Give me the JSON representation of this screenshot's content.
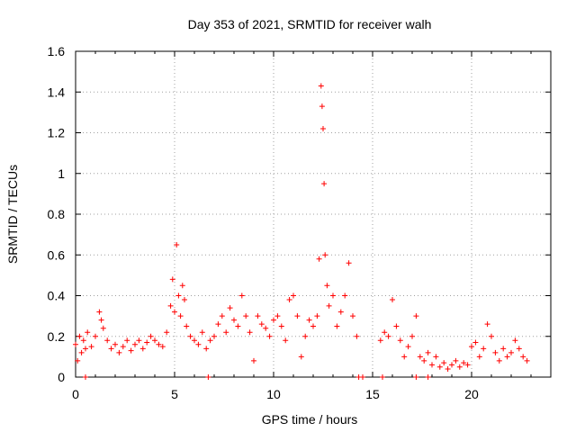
{
  "chart_data": {
    "type": "scatter",
    "title": "Day 353 of 2021, SRMTID for receiver walh",
    "xlabel": "GPS time / hours",
    "ylabel": "SRMTID / TECUs",
    "xlim": [
      0,
      24
    ],
    "ylim": [
      0,
      1.6
    ],
    "xticks": [
      0,
      5,
      10,
      15,
      20
    ],
    "xtick_labels": [
      "0",
      "5",
      "10",
      "15",
      "20"
    ],
    "yticks": [
      0,
      0.2,
      0.4,
      0.6,
      0.8,
      1,
      1.2,
      1.4,
      1.6
    ],
    "ytick_labels": [
      "0",
      "0.2",
      "0.4",
      "0.6",
      "0.8",
      "1",
      "1.2",
      "1.4",
      "1.6"
    ],
    "grid": true,
    "marker": "+",
    "color": "#ff0000",
    "series": [
      {
        "name": "SRMTID walh",
        "x": [
          0.0,
          0.1,
          0.2,
          0.3,
          0.4,
          0.5,
          0.6,
          0.8,
          1.0,
          1.2,
          1.3,
          1.4,
          1.6,
          1.8,
          2.0,
          2.2,
          2.4,
          2.6,
          2.8,
          3.0,
          3.2,
          3.4,
          3.6,
          3.8,
          4.0,
          4.2,
          4.4,
          4.6,
          4.8,
          4.9,
          5.0,
          5.1,
          5.2,
          5.3,
          5.4,
          5.5,
          5.6,
          5.8,
          6.0,
          6.2,
          6.4,
          6.6,
          6.8,
          7.0,
          7.2,
          7.4,
          7.6,
          7.8,
          8.0,
          8.2,
          8.4,
          8.6,
          8.8,
          9.0,
          9.2,
          9.4,
          9.6,
          9.8,
          10.0,
          10.2,
          10.4,
          10.6,
          10.8,
          11.0,
          11.2,
          11.4,
          11.6,
          11.8,
          12.0,
          12.2,
          12.3,
          12.4,
          12.45,
          12.5,
          12.55,
          12.6,
          12.7,
          12.8,
          13.0,
          13.2,
          13.4,
          13.6,
          13.8,
          14.0,
          14.2,
          15.4,
          15.6,
          15.8,
          16.0,
          16.2,
          16.4,
          16.6,
          16.8,
          17.0,
          17.2,
          17.4,
          17.6,
          17.8,
          18.0,
          18.2,
          18.4,
          18.6,
          18.8,
          19.0,
          19.2,
          19.4,
          19.6,
          19.8,
          20.0,
          20.2,
          20.4,
          20.6,
          20.8,
          21.0,
          21.2,
          21.4,
          21.6,
          21.8,
          22.0,
          22.2,
          22.4,
          22.6,
          22.8,
          0.5,
          6.7,
          14.3,
          14.5,
          15.5,
          17.2,
          17.8
        ],
        "y": [
          0.16,
          0.08,
          0.2,
          0.12,
          0.18,
          0.14,
          0.22,
          0.15,
          0.2,
          0.32,
          0.28,
          0.24,
          0.18,
          0.14,
          0.16,
          0.12,
          0.15,
          0.18,
          0.13,
          0.16,
          0.18,
          0.14,
          0.17,
          0.2,
          0.18,
          0.16,
          0.15,
          0.22,
          0.35,
          0.48,
          0.32,
          0.65,
          0.4,
          0.3,
          0.45,
          0.38,
          0.25,
          0.2,
          0.18,
          0.16,
          0.22,
          0.14,
          0.18,
          0.2,
          0.26,
          0.3,
          0.22,
          0.34,
          0.28,
          0.25,
          0.4,
          0.3,
          0.22,
          0.08,
          0.3,
          0.26,
          0.24,
          0.2,
          0.28,
          0.3,
          0.25,
          0.18,
          0.38,
          0.4,
          0.3,
          0.1,
          0.2,
          0.28,
          0.25,
          0.3,
          0.58,
          1.43,
          1.33,
          1.22,
          0.95,
          0.6,
          0.45,
          0.35,
          0.4,
          0.25,
          0.32,
          0.4,
          0.56,
          0.3,
          0.2,
          0.18,
          0.22,
          0.2,
          0.38,
          0.25,
          0.18,
          0.1,
          0.15,
          0.2,
          0.3,
          0.1,
          0.08,
          0.12,
          0.06,
          0.1,
          0.05,
          0.07,
          0.04,
          0.06,
          0.08,
          0.05,
          0.07,
          0.06,
          0.15,
          0.17,
          0.1,
          0.14,
          0.26,
          0.2,
          0.12,
          0.08,
          0.14,
          0.1,
          0.12,
          0.18,
          0.14,
          0.1,
          0.08,
          0.0,
          0.0,
          0.0,
          0.0,
          0.0,
          0.0,
          0.0
        ]
      }
    ]
  }
}
